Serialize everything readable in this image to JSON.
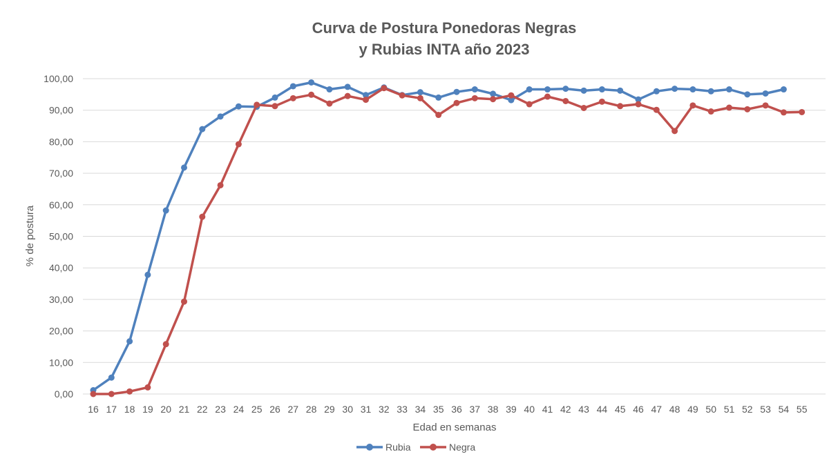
{
  "chart_data": {
    "type": "line",
    "title_lines": [
      "Curva de Postura Ponedoras Negras",
      "y Rubias INTA año 2023"
    ],
    "xlabel": "Edad en semanas",
    "ylabel": "% de postura",
    "ylim": [
      0,
      100
    ],
    "y_ticks": [
      "0,00",
      "10,00",
      "20,00",
      "30,00",
      "40,00",
      "50,00",
      "60,00",
      "70,00",
      "80,00",
      "90,00",
      "100,00"
    ],
    "categories": [
      "16",
      "17",
      "18",
      "19",
      "20",
      "21",
      "22",
      "23",
      "24",
      "25",
      "26",
      "27",
      "28",
      "29",
      "30",
      "31",
      "32",
      "33",
      "34",
      "35",
      "36",
      "37",
      "38",
      "39",
      "40",
      "41",
      "42",
      "43",
      "44",
      "45",
      "46",
      "47",
      "48",
      "49",
      "50",
      "51",
      "52",
      "53",
      "54",
      "55"
    ],
    "grid": "horizontal",
    "legend_position": "bottom",
    "series": [
      {
        "name": "Rubia",
        "color": "#4f81bd",
        "values": [
          1.2,
          5.2,
          16.7,
          37.8,
          58.2,
          71.8,
          84.0,
          88.0,
          91.2,
          91.1,
          94.0,
          97.6,
          98.8,
          96.6,
          97.4,
          94.8,
          97.2,
          94.8,
          95.7,
          94.0,
          95.8,
          96.6,
          95.2,
          93.2,
          96.6,
          96.6,
          96.8,
          96.2,
          96.6,
          96.2,
          93.4,
          96.0,
          96.8,
          96.6,
          96.0,
          96.6,
          95.0,
          95.3,
          96.6,
          null
        ]
      },
      {
        "name": "Negra",
        "color": "#c0504d",
        "values": [
          0.0,
          0.0,
          0.8,
          2.1,
          15.8,
          29.3,
          56.2,
          66.2,
          79.2,
          91.7,
          91.3,
          93.8,
          94.9,
          92.1,
          94.5,
          93.3,
          97.0,
          94.7,
          93.8,
          88.5,
          92.3,
          93.8,
          93.5,
          94.7,
          91.9,
          94.3,
          92.9,
          90.7,
          92.7,
          91.3,
          91.9,
          90.1,
          83.4,
          91.5,
          89.6,
          90.8,
          90.3,
          91.5,
          89.3,
          89.4
        ]
      }
    ]
  }
}
